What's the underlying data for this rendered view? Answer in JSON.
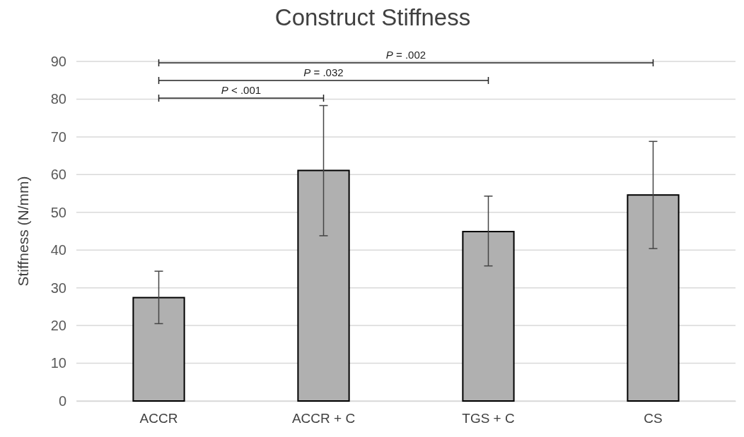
{
  "chart_data": {
    "type": "bar",
    "title": "Construct Stiffness",
    "ylabel": "Stiffness (N/mm)",
    "categories": [
      "ACCR",
      "ACCR + C",
      "TGS + C",
      "CS"
    ],
    "values": [
      27.4,
      61.1,
      44.9,
      54.6
    ],
    "errors": [
      [
        20.5,
        34.4
      ],
      [
        43.8,
        78.3
      ],
      [
        35.8,
        54.3
      ],
      [
        40.4,
        68.8
      ]
    ],
    "color": "#b0b0b0",
    "ylim": [
      0,
      90
    ],
    "yticks": [
      0,
      10,
      20,
      30,
      40,
      50,
      60,
      70,
      80,
      90
    ],
    "grid": "y",
    "annotations": [
      "P < .001",
      "P = .032",
      "P = .002"
    ]
  }
}
